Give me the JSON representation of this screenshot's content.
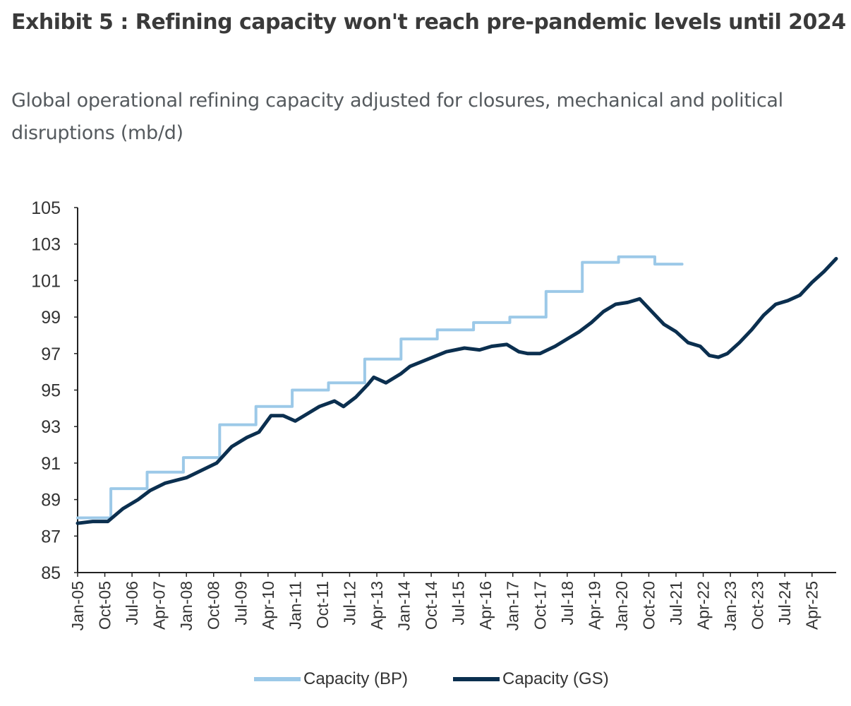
{
  "title": "Exhibit 5 : Refining capacity won't reach pre-pandemic levels until 2024",
  "subtitle": "Global operational refining capacity adjusted for closures, mechanical and political disruptions (mb/d)",
  "colors": {
    "bp": "#9cc9e8",
    "gs": "#0b2f4f",
    "axis": "#222222",
    "text": "#333333"
  },
  "chart_data": {
    "type": "line",
    "title": "",
    "xlabel": "",
    "ylabel": "",
    "ylim": [
      85,
      105
    ],
    "yticks": [
      85,
      87,
      89,
      91,
      93,
      95,
      97,
      99,
      101,
      103,
      105
    ],
    "xlim": [
      "2005-01",
      "2025-12"
    ],
    "xticks": [
      "Jan-05",
      "Oct-05",
      "Jul-06",
      "Apr-07",
      "Jan-08",
      "Oct-08",
      "Jul-09",
      "Apr-10",
      "Jan-11",
      "Oct-11",
      "Jul-12",
      "Apr-13",
      "Jan-14",
      "Oct-14",
      "Jul-15",
      "Apr-16",
      "Jan-17",
      "Oct-17",
      "Jul-18",
      "Apr-19",
      "Jan-20",
      "Oct-20",
      "Jul-21",
      "Apr-22",
      "Jan-23",
      "Oct-23",
      "Jul-24",
      "Apr-25"
    ],
    "grid": false,
    "legend_position": "bottom",
    "series": [
      {
        "name": "Capacity (BP)",
        "step": true,
        "points": [
          [
            "2005-01",
            88.0
          ],
          [
            "2005-12",
            89.6
          ],
          [
            "2006-12",
            90.5
          ],
          [
            "2007-12",
            91.3
          ],
          [
            "2008-12",
            93.1
          ],
          [
            "2009-12",
            94.1
          ],
          [
            "2010-12",
            95.0
          ],
          [
            "2011-12",
            95.4
          ],
          [
            "2012-12",
            96.7
          ],
          [
            "2013-12",
            97.8
          ],
          [
            "2014-12",
            98.3
          ],
          [
            "2015-12",
            98.7
          ],
          [
            "2016-12",
            99.0
          ],
          [
            "2017-12",
            100.4
          ],
          [
            "2018-12",
            102.0
          ],
          [
            "2019-12",
            102.3
          ],
          [
            "2020-12",
            101.9
          ],
          [
            "2021-09",
            101.9
          ]
        ]
      },
      {
        "name": "Capacity (GS)",
        "step": false,
        "points": [
          [
            "2005-01",
            87.7
          ],
          [
            "2005-06",
            87.8
          ],
          [
            "2005-11",
            87.8
          ],
          [
            "2006-04",
            88.5
          ],
          [
            "2006-09",
            89.0
          ],
          [
            "2007-01",
            89.5
          ],
          [
            "2007-06",
            89.9
          ],
          [
            "2008-01",
            90.2
          ],
          [
            "2008-06",
            90.6
          ],
          [
            "2008-11",
            91.0
          ],
          [
            "2009-04",
            91.9
          ],
          [
            "2009-09",
            92.4
          ],
          [
            "2010-01",
            92.7
          ],
          [
            "2010-05",
            93.6
          ],
          [
            "2010-09",
            93.6
          ],
          [
            "2011-01",
            93.3
          ],
          [
            "2011-05",
            93.7
          ],
          [
            "2011-09",
            94.1
          ],
          [
            "2012-02",
            94.4
          ],
          [
            "2012-05",
            94.1
          ],
          [
            "2012-09",
            94.6
          ],
          [
            "2013-01",
            95.3
          ],
          [
            "2013-03",
            95.7
          ],
          [
            "2013-07",
            95.4
          ],
          [
            "2013-12",
            95.9
          ],
          [
            "2014-03",
            96.3
          ],
          [
            "2014-09",
            96.7
          ],
          [
            "2015-03",
            97.1
          ],
          [
            "2015-09",
            97.3
          ],
          [
            "2016-02",
            97.2
          ],
          [
            "2016-06",
            97.4
          ],
          [
            "2016-11",
            97.5
          ],
          [
            "2017-03",
            97.1
          ],
          [
            "2017-06",
            97.0
          ],
          [
            "2017-10",
            97.0
          ],
          [
            "2018-03",
            97.4
          ],
          [
            "2018-07",
            97.8
          ],
          [
            "2018-11",
            98.2
          ],
          [
            "2019-03",
            98.7
          ],
          [
            "2019-07",
            99.3
          ],
          [
            "2019-11",
            99.7
          ],
          [
            "2020-03",
            99.8
          ],
          [
            "2020-07",
            100.0
          ],
          [
            "2020-11",
            99.3
          ],
          [
            "2021-03",
            98.6
          ],
          [
            "2021-07",
            98.2
          ],
          [
            "2021-11",
            97.6
          ],
          [
            "2022-03",
            97.4
          ],
          [
            "2022-06",
            96.9
          ],
          [
            "2022-09",
            96.8
          ],
          [
            "2022-12",
            97.0
          ],
          [
            "2023-04",
            97.6
          ],
          [
            "2023-08",
            98.3
          ],
          [
            "2023-12",
            99.1
          ],
          [
            "2024-04",
            99.7
          ],
          [
            "2024-08",
            99.9
          ],
          [
            "2024-12",
            100.2
          ],
          [
            "2025-04",
            100.9
          ],
          [
            "2025-08",
            101.5
          ],
          [
            "2025-12",
            102.2
          ]
        ]
      }
    ]
  }
}
